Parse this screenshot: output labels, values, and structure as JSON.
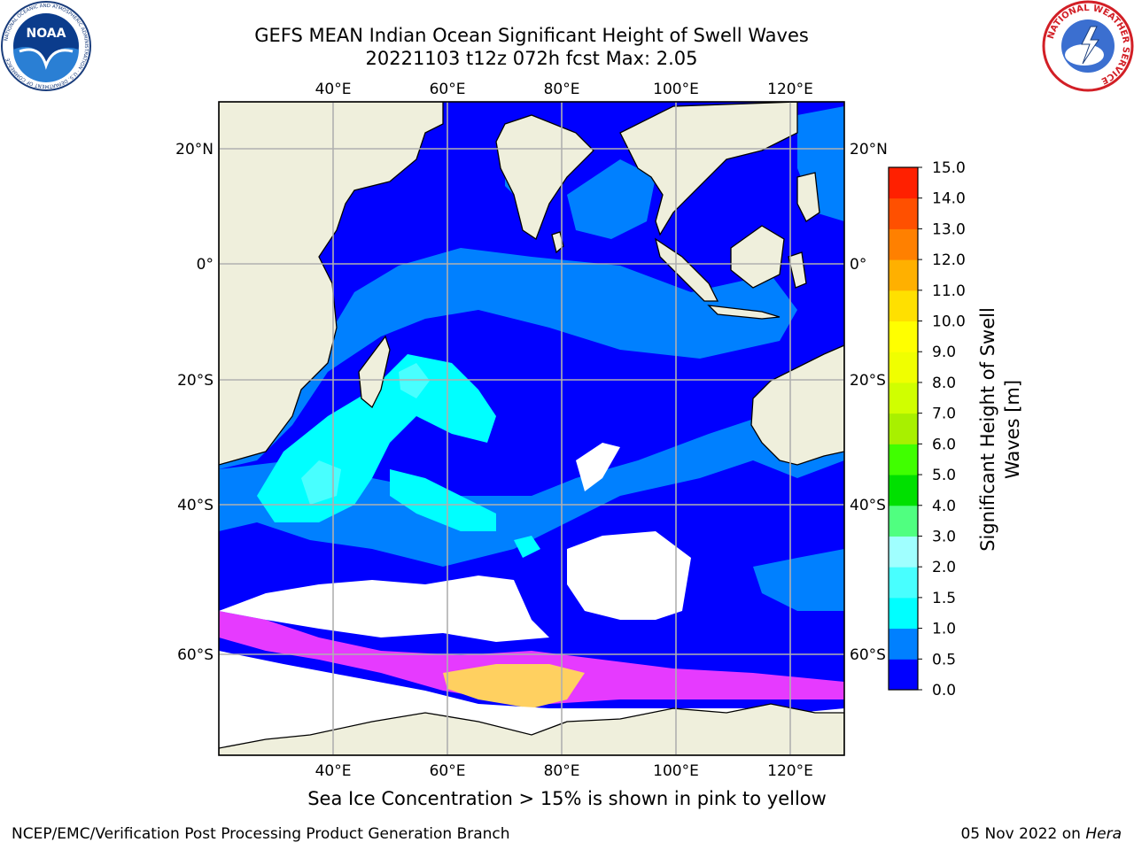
{
  "header": {
    "title_line1": "GEFS MEAN Indian Ocean Significant Height of Swell Waves",
    "title_line2": "20221103 t12z 072h fcst   Max: 2.05",
    "noaa_logo_text": "NOAA",
    "noaa_ring_text": "NATIONAL OCEANIC AND ATMOSPHERIC ADMINISTRATION · U.S. DEPARTMENT OF COMMERCE",
    "nws_ring_text": "NATIONAL WEATHER SERVICE"
  },
  "map": {
    "lon_ticks": [
      "40°E",
      "60°E",
      "80°E",
      "100°E",
      "120°E"
    ],
    "lat_ticks": [
      "20°N",
      "0°",
      "20°S",
      "40°S",
      "60°S"
    ],
    "lon_values": [
      40,
      60,
      80,
      100,
      120
    ],
    "lat_values": [
      20,
      0,
      -20,
      -40,
      -60
    ],
    "colors": {
      "land": "#efefdc",
      "ocean": "#0000ff",
      "swell_05_1": "#0080ff",
      "swell_1_15": "#00ffff",
      "swell_15_2": "#48ffff",
      "sea_ice_low": "#ff40ff",
      "sea_ice_high": "#ffd060",
      "no_data": "#ffffff"
    }
  },
  "colorbar": {
    "label_line1": "Significant Height of Swell",
    "label_line2": "Waves [m]",
    "levels": [
      "0.0",
      "0.5",
      "1.0",
      "1.5",
      "2.0",
      "3.0",
      "4.0",
      "5.0",
      "6.0",
      "7.0",
      "8.0",
      "9.0",
      "10.0",
      "11.0",
      "12.0",
      "13.0",
      "14.0",
      "15.0"
    ],
    "colors": [
      "#0000ff",
      "#0080ff",
      "#00ffff",
      "#48ffff",
      "#a0ffff",
      "#50ff80",
      "#00e000",
      "#40ff00",
      "#a8f000",
      "#d0ff00",
      "#f0ff00",
      "#ffff00",
      "#ffe000",
      "#ffb000",
      "#ff8000",
      "#ff5000",
      "#ff2000"
    ]
  },
  "footer": {
    "note": "Sea Ice Concentration > 15% is shown in pink to yellow",
    "credit": "NCEP/EMC/Verification Post Processing Product Generation Branch",
    "date": "05 Nov 2022 on",
    "host": "Hera"
  }
}
